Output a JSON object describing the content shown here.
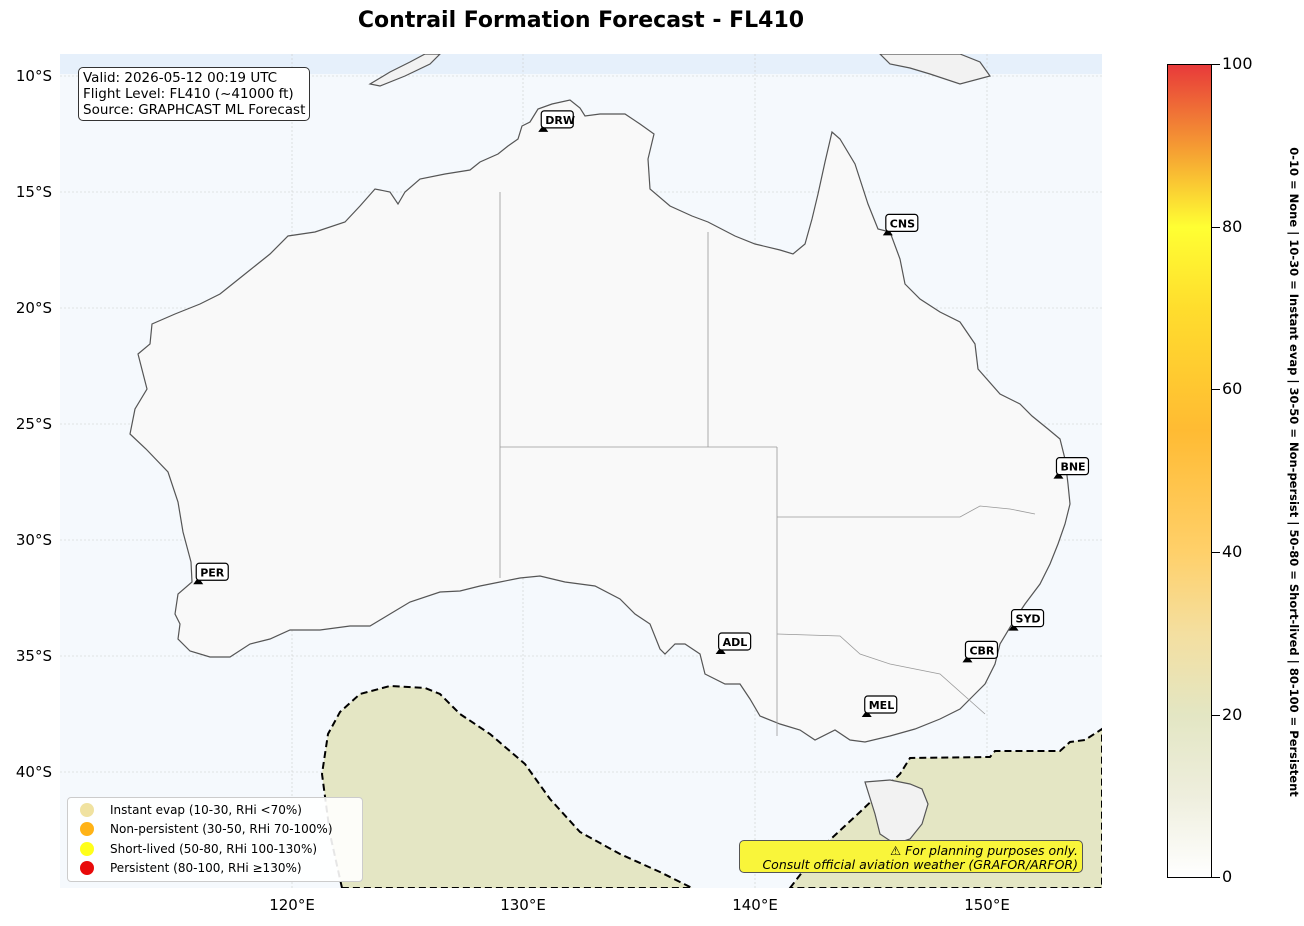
{
  "title": "Contrail Formation Forecast - FL410",
  "info": {
    "valid": "Valid: 2026-05-12 00:19 UTC",
    "flight_level": "Flight Level: FL410 (~41000 ft)",
    "source": "Source: GRAPHCAST ML Forecast"
  },
  "axes": {
    "lat_ticks": [
      "10°S",
      "15°S",
      "20°S",
      "25°S",
      "30°S",
      "35°S",
      "40°S"
    ],
    "lon_ticks": [
      "120°E",
      "130°E",
      "140°E",
      "150°E"
    ]
  },
  "airports": [
    {
      "code": "DRW",
      "lat": -12.41,
      "lon": 130.87
    },
    {
      "code": "CNS",
      "lat": -16.88,
      "lon": 145.75
    },
    {
      "code": "BNE",
      "lat": -27.38,
      "lon": 153.12
    },
    {
      "code": "PER",
      "lat": -31.94,
      "lon": 115.97
    },
    {
      "code": "ADL",
      "lat": -34.95,
      "lon": 138.53
    },
    {
      "code": "SYD",
      "lat": -33.94,
      "lon": 151.18
    },
    {
      "code": "CBR",
      "lat": -35.31,
      "lon": 149.19
    },
    {
      "code": "MEL",
      "lat": -37.67,
      "lon": 144.84
    }
  ],
  "legend": [
    {
      "label": "Instant evap (10-30, RHi <70%)",
      "color": "#f0e2a0"
    },
    {
      "label": "Non-persistent (30-50, RHi 70-100%)",
      "color": "#ffb316"
    },
    {
      "label": "Short-lived (50-80, RHi 100-130%)",
      "color": "#ffff1a"
    },
    {
      "label": "Persistent (80-100, RHi ≥130%)",
      "color": "#e80a0a"
    }
  ],
  "warning": {
    "line1": "⚠ For planning purposes only.",
    "line2": "Consult official aviation weather (GRAFOR/ARFOR)"
  },
  "colorbar": {
    "ticks": [
      "0",
      "20",
      "40",
      "60",
      "80",
      "100"
    ],
    "range": [
      0,
      100
    ],
    "side_label": "0-10 = None  |  10-30 = Instant evap  |  30-50 = Non-persist  |  50-80 = Short-lived  |  80-100 = Persistent"
  },
  "colors": {
    "ocean": "#f5f9fd",
    "land": "#f9f9f9",
    "contrail_zone": "#e4e6c4",
    "warning_bg": "#f9f53a"
  }
}
